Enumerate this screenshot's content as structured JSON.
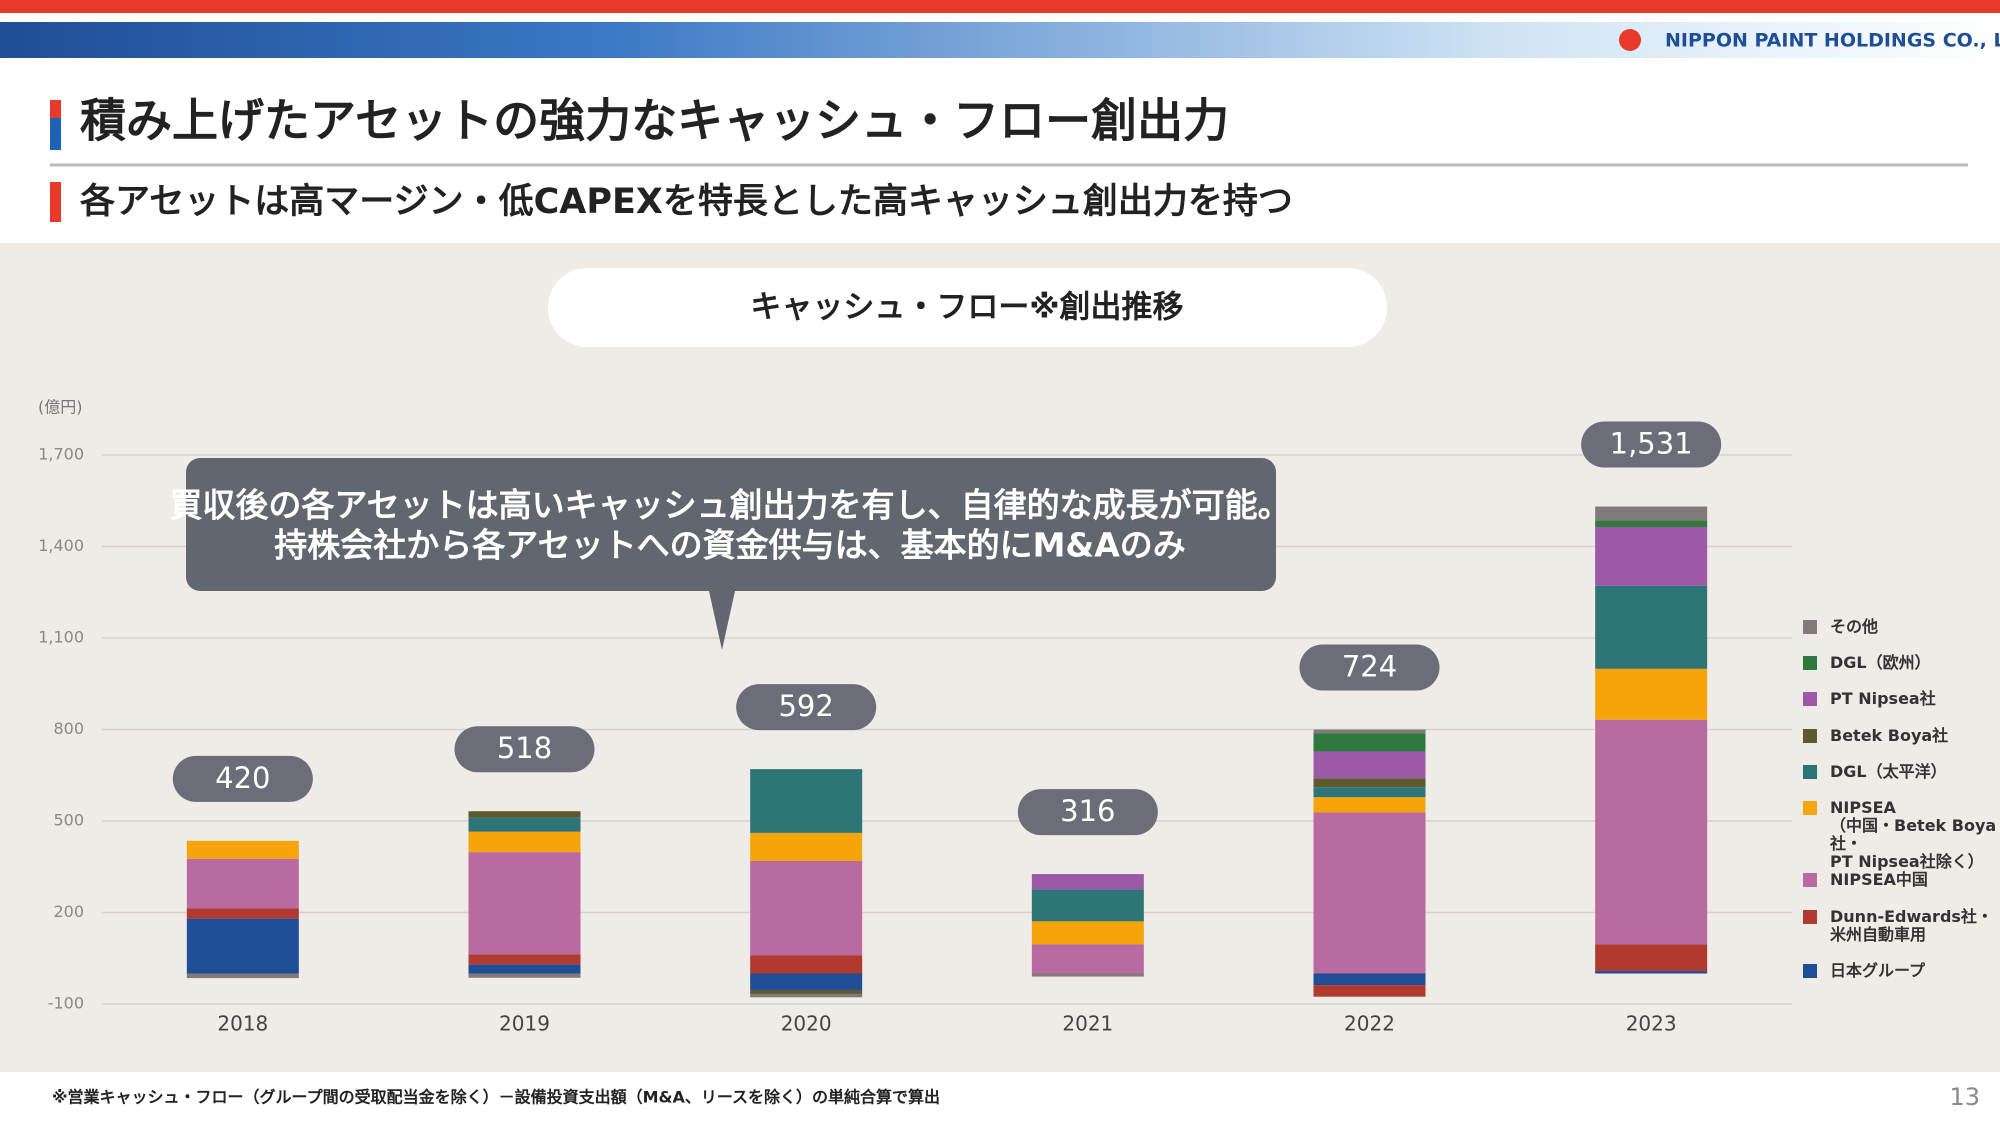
{
  "header": {
    "logo": "NIPPON PAINT HOLDINGS CO., LTD.",
    "title": "積み上げたアセットの強力なキャッシュ・フロー創出力",
    "subtitle": "各アセットは高マージン・低CAPEXを特長とした高キャッシュ創出力を持つ"
  },
  "callout": [
    "買収後の各アセットは高いキャッシュ創出力を有し、自律的な成長が可能。",
    "持株会社から各アセットへの資金供与は、基本的にM&Aのみ"
  ],
  "chart_data": {
    "type": "stacked_bar",
    "title": "キャッシュ・フロー※創出推移",
    "y_unit": "(億円)",
    "categories": [
      "2018",
      "2019",
      "2020",
      "2021",
      "2022",
      "2023"
    ],
    "ylim": [
      -100,
      1700
    ],
    "yticks": [
      -100,
      200,
      500,
      800,
      {
        "value": 1100,
        "label": "1,100"
      },
      {
        "value": 1400,
        "label": "1,400"
      },
      {
        "value": 1700,
        "label": "1,700"
      }
    ],
    "grid": true,
    "series": [
      {
        "name": "日本グループ",
        "color": "#1f4e96",
        "values": [
          180,
          30,
          -54,
          0,
          -38,
          8
        ]
      },
      {
        "name": "Dunn-Edwards社・\n米州自動車用",
        "color": "#b03a2e",
        "values": [
          33,
          33,
          59,
          0,
          -38,
          88
        ]
      },
      {
        "name": "NIPSEA中国",
        "color": "#b96aa0",
        "values": [
          163,
          335,
          310,
          96,
          528,
          736
        ]
      },
      {
        "name": "NIPSEA\n（中国・Betek Boya社・\n  PT Nipsea社除く）",
        "color": "#f5a50a",
        "values": [
          59,
          67,
          92,
          75,
          50,
          167
        ]
      },
      {
        "name": "DGL（太平洋）",
        "color": "#2e7578",
        "values": [
          0,
          46,
          209,
          105,
          33,
          272
        ]
      },
      {
        "name": "Betek Boya社",
        "color": "#5c5a2e",
        "values": [
          0,
          21,
          -13,
          0,
          29,
          0
        ]
      },
      {
        "name": "PT Nipsea社",
        "color": "#9b59a6",
        "values": [
          0,
          0,
          0,
          50,
          88,
          193
        ]
      },
      {
        "name": "DGL（欧州）",
        "color": "#2e7a3e",
        "values": [
          0,
          0,
          0,
          0,
          59,
          21
        ]
      },
      {
        "name": "その他",
        "color": "#807a7a",
        "values": [
          -15,
          -14,
          -11,
          -10,
          13,
          46
        ]
      }
    ],
    "totals": [
      420,
      518,
      592,
      316,
      724,
      1531
    ],
    "totals_labels": [
      "420",
      "518",
      "592",
      "316",
      "724",
      "1,531"
    ]
  },
  "footnote": "※営業キャッシュ・フロー（グループ間の受取配当金を除く）－設備投資支出額（M&A、リースを除く）の単純合算で算出",
  "page_number": "13"
}
